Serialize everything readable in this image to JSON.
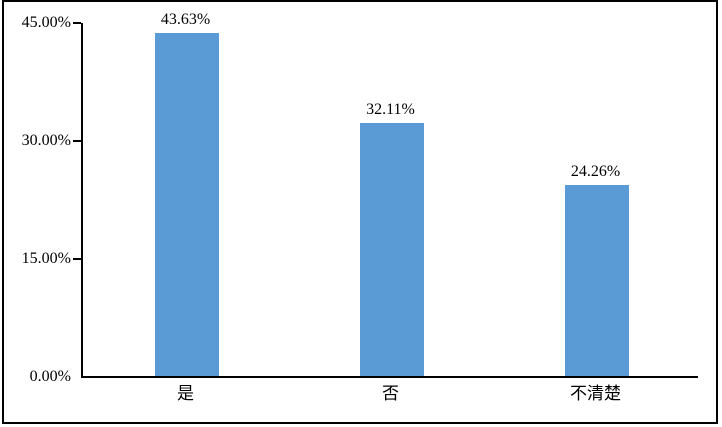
{
  "chart_data": {
    "type": "bar",
    "title": "",
    "categories": [
      "是",
      "否",
      "不清楚"
    ],
    "values": [
      43.63,
      32.11,
      24.26
    ],
    "data_labels": [
      "43.63%",
      "32.11%",
      "24.26%"
    ],
    "y_axis": {
      "min": 0,
      "max": 45,
      "ticks": [
        {
          "value": 0,
          "label": "0.00%"
        },
        {
          "value": 15,
          "label": "15.00%"
        },
        {
          "value": 30,
          "label": "30.00%"
        },
        {
          "value": 45,
          "label": "45.00%"
        }
      ]
    },
    "grid": false,
    "legend": false,
    "colors": {
      "bar": "#5B9BD5",
      "axis": "#000000",
      "frame": "#000000",
      "text": "#000000",
      "background": "#FFFFFF"
    }
  }
}
